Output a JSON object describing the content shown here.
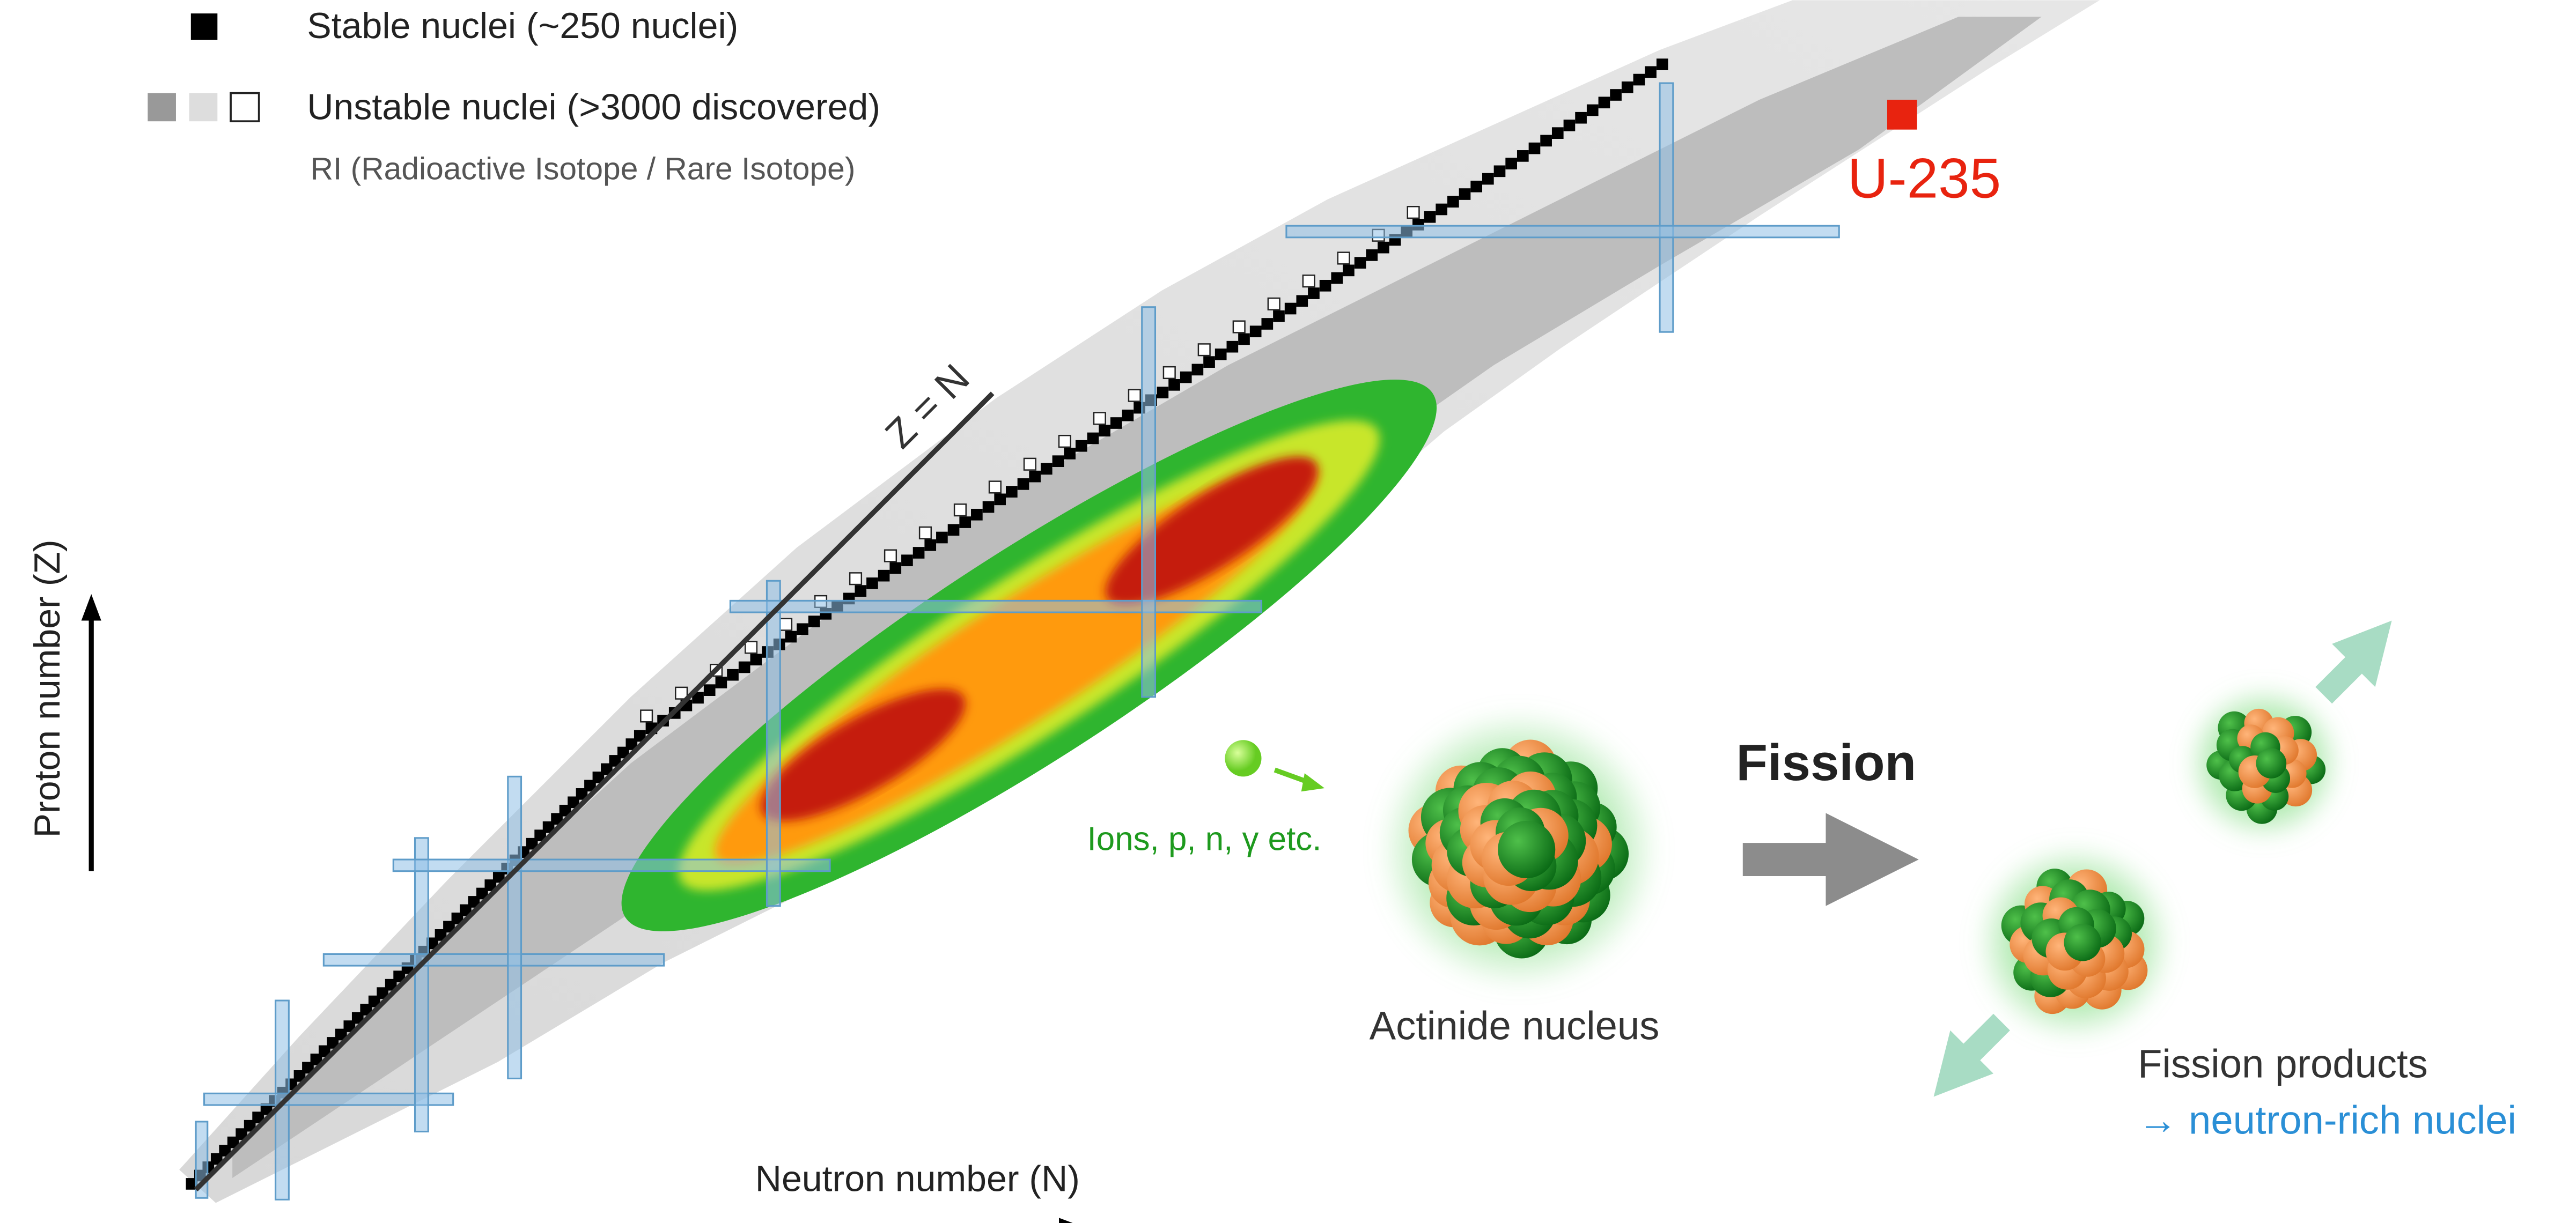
{
  "legend": {
    "stable": "Stable nuclei (~250 nuclei)",
    "unstable": "Unstable nuclei (>3000 discovered)",
    "ri_note": "RI (Radioactive Isotope / Rare Isotope)"
  },
  "axes": {
    "y_label": "Proton number (Z)",
    "x_label": "Neutron number (N)"
  },
  "chart_labels": {
    "z_equals_n": "Z = N",
    "u235": "U-235"
  },
  "reaction": {
    "projectiles": "Ions, p, n, γ etc.",
    "target": "Actinide nucleus",
    "process": "Fission",
    "products": "Fission products",
    "products_note": "→ neutron-rich nuclei"
  }
}
